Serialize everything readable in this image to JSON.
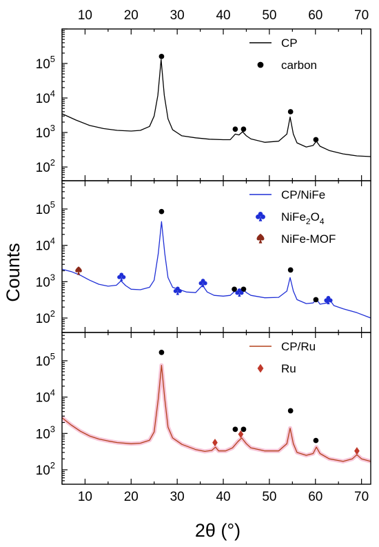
{
  "chart_data": {
    "type": "line",
    "x_axis": {
      "label": "2θ (°)",
      "range": [
        5,
        72
      ],
      "ticks": [
        10,
        20,
        30,
        40,
        50,
        60,
        70
      ]
    },
    "y_axis": {
      "label": "Counts",
      "scale": "log"
    },
    "panels": [
      {
        "id": "top",
        "ylim": [
          40,
          1000000
        ],
        "ytick_exponents": [
          2,
          3,
          4,
          5
        ],
        "series": [
          {
            "name": "CP",
            "color": "#000000",
            "points": [
              [
                5,
                3500
              ],
              [
                8,
                2300
              ],
              [
                11,
                1600
              ],
              [
                14,
                1300
              ],
              [
                17,
                1150
              ],
              [
                20,
                1100
              ],
              [
                22,
                1150
              ],
              [
                24,
                1500
              ],
              [
                25,
                3000
              ],
              [
                25.8,
                12000
              ],
              [
                26.5,
                130000
              ],
              [
                27.2,
                12000
              ],
              [
                28,
                2500
              ],
              [
                29,
                1200
              ],
              [
                31,
                800
              ],
              [
                34,
                700
              ],
              [
                37,
                640
              ],
              [
                40,
                620
              ],
              [
                41.5,
                620
              ],
              [
                42.6,
                900
              ],
              [
                43.4,
                850
              ],
              [
                44.2,
                1050
              ],
              [
                45,
                800
              ],
              [
                46,
                650
              ],
              [
                49,
                520
              ],
              [
                52,
                560
              ],
              [
                53.8,
                900
              ],
              [
                54.5,
                2800
              ],
              [
                55.2,
                900
              ],
              [
                56,
                500
              ],
              [
                58,
                380
              ],
              [
                59.5,
                420
              ],
              [
                60.2,
                560
              ],
              [
                61,
                400
              ],
              [
                63,
                300
              ],
              [
                66,
                240
              ],
              [
                69,
                210
              ],
              [
                72,
                200
              ]
            ]
          }
        ],
        "markers": [
          {
            "type": "carbon",
            "x": 26.6,
            "y": 160000
          },
          {
            "type": "carbon",
            "x": 42.6,
            "y": 1250
          },
          {
            "type": "carbon",
            "x": 44.4,
            "y": 1250
          },
          {
            "type": "carbon",
            "x": 54.6,
            "y": 4000
          },
          {
            "type": "carbon",
            "x": 60.1,
            "y": 620
          }
        ],
        "legend": [
          {
            "label": "CP",
            "symbol": "line",
            "color": "#000000"
          },
          {
            "label": "carbon",
            "symbol": "dot",
            "color": "#000000"
          }
        ]
      },
      {
        "id": "middle",
        "ylim": [
          40,
          600000
        ],
        "ytick_exponents": [
          2,
          3,
          4,
          5
        ],
        "series": [
          {
            "name": "CP/NiFe",
            "color": "#1f2fd6",
            "points": [
              [
                5,
                2200
              ],
              [
                7,
                1900
              ],
              [
                9,
                1500
              ],
              [
                11,
                1100
              ],
              [
                13,
                850
              ],
              [
                15,
                750
              ],
              [
                16.8,
                800
              ],
              [
                17.8,
                1050
              ],
              [
                18.8,
                780
              ],
              [
                20,
                620
              ],
              [
                22,
                600
              ],
              [
                24,
                700
              ],
              [
                25,
                1100
              ],
              [
                25.9,
                6000
              ],
              [
                26.6,
                45000
              ],
              [
                27.3,
                6000
              ],
              [
                28,
                1300
              ],
              [
                29,
                700
              ],
              [
                30.5,
                600
              ],
              [
                32,
                520
              ],
              [
                34,
                500
              ],
              [
                35.5,
                800
              ],
              [
                36.5,
                520
              ],
              [
                38,
                420
              ],
              [
                40,
                400
              ],
              [
                41.5,
                420
              ],
              [
                42.6,
                560
              ],
              [
                43.5,
                520
              ],
              [
                44.3,
                620
              ],
              [
                45,
                500
              ],
              [
                46,
                420
              ],
              [
                49,
                360
              ],
              [
                52,
                370
              ],
              [
                53.8,
                550
              ],
              [
                54.5,
                1300
              ],
              [
                55.2,
                550
              ],
              [
                56,
                320
              ],
              [
                58,
                250
              ],
              [
                59.5,
                260
              ],
              [
                60.2,
                330
              ],
              [
                61,
                240
              ],
              [
                62.5,
                260
              ],
              [
                63,
                330
              ],
              [
                64,
                220
              ],
              [
                66,
                180
              ],
              [
                69,
                140
              ],
              [
                72,
                100
              ]
            ]
          }
        ],
        "markers": [
          {
            "type": "carbon",
            "x": 26.6,
            "y": 85000
          },
          {
            "type": "carbon",
            "x": 42.4,
            "y": 620
          },
          {
            "type": "carbon",
            "x": 44.4,
            "y": 620
          },
          {
            "type": "carbon",
            "x": 54.6,
            "y": 2100
          },
          {
            "type": "carbon",
            "x": 60.1,
            "y": 320
          },
          {
            "type": "NiFe2O4",
            "x": 17.9,
            "y": 1350
          },
          {
            "type": "NiFe2O4",
            "x": 30.1,
            "y": 560
          },
          {
            "type": "NiFe2O4",
            "x": 35.6,
            "y": 920
          },
          {
            "type": "NiFe2O4",
            "x": 43.5,
            "y": 500
          },
          {
            "type": "NiFe2O4",
            "x": 62.8,
            "y": 310
          },
          {
            "type": "NiFe-MOF",
            "x": 8.6,
            "y": 2000
          }
        ],
        "legend": [
          {
            "label": "CP/NiFe",
            "symbol": "line",
            "color": "#1f2fd6"
          },
          {
            "label": "NiFe",
            "sub1": "2",
            "mid": "O",
            "sub2": "4",
            "symbol": "club",
            "color": "#1f2fd6"
          },
          {
            "label": "NiFe-MOF",
            "symbol": "spade",
            "color": "#8b2a1a"
          }
        ]
      },
      {
        "id": "bottom",
        "ylim": [
          40,
          600000
        ],
        "ytick_exponents": [
          2,
          3,
          4,
          5
        ],
        "series": [
          {
            "name": "CP/Ru",
            "color": "#b3421c",
            "points": [
              [
                5,
                2700
              ],
              [
                7,
                1700
              ],
              [
                9,
                1150
              ],
              [
                11,
                850
              ],
              [
                13,
                700
              ],
              [
                15,
                620
              ],
              [
                17,
                560
              ],
              [
                20,
                520
              ],
              [
                22,
                540
              ],
              [
                24,
                650
              ],
              [
                25,
                1100
              ],
              [
                25.9,
                9000
              ],
              [
                26.6,
                75000
              ],
              [
                27.3,
                9000
              ],
              [
                28,
                1500
              ],
              [
                29,
                750
              ],
              [
                31,
                500
              ],
              [
                34,
                360
              ],
              [
                36,
                320
              ],
              [
                37.5,
                340
              ],
              [
                38.3,
                420
              ],
              [
                39,
                330
              ],
              [
                40.5,
                330
              ],
              [
                42,
                400
              ],
              [
                43.2,
                600
              ],
              [
                44,
                750
              ],
              [
                45,
                520
              ],
              [
                46,
                400
              ],
              [
                49,
                330
              ],
              [
                52,
                330
              ],
              [
                53.8,
                520
              ],
              [
                54.5,
                1400
              ],
              [
                55.2,
                520
              ],
              [
                56,
                300
              ],
              [
                58,
                250
              ],
              [
                59.5,
                280
              ],
              [
                60.2,
                420
              ],
              [
                61,
                280
              ],
              [
                63,
                200
              ],
              [
                66,
                170
              ],
              [
                68,
                200
              ],
              [
                69,
                260
              ],
              [
                70,
                200
              ],
              [
                72,
                170
              ]
            ]
          }
        ],
        "markers": [
          {
            "type": "carbon",
            "x": 26.6,
            "y": 170000
          },
          {
            "type": "carbon",
            "x": 42.6,
            "y": 1300
          },
          {
            "type": "carbon",
            "x": 44.4,
            "y": 1300
          },
          {
            "type": "carbon",
            "x": 54.6,
            "y": 4200
          },
          {
            "type": "carbon",
            "x": 60.1,
            "y": 640
          },
          {
            "type": "Ru",
            "x": 38.2,
            "y": 560
          },
          {
            "type": "Ru",
            "x": 43.8,
            "y": 950
          },
          {
            "type": "Ru",
            "x": 69.0,
            "y": 330
          }
        ],
        "legend": [
          {
            "label": "CP/Ru",
            "symbol": "line",
            "color": "#b3421c"
          },
          {
            "label": "Ru",
            "symbol": "diamond",
            "color": "#b3421c"
          }
        ]
      }
    ]
  },
  "colors": {
    "axis": "#000000",
    "carbon": "#000000",
    "nife2o4": "#1f2fd6",
    "nifemof": "#8b2a1a",
    "ru": "#c0392b",
    "ru_band": "#f5b8d0"
  }
}
